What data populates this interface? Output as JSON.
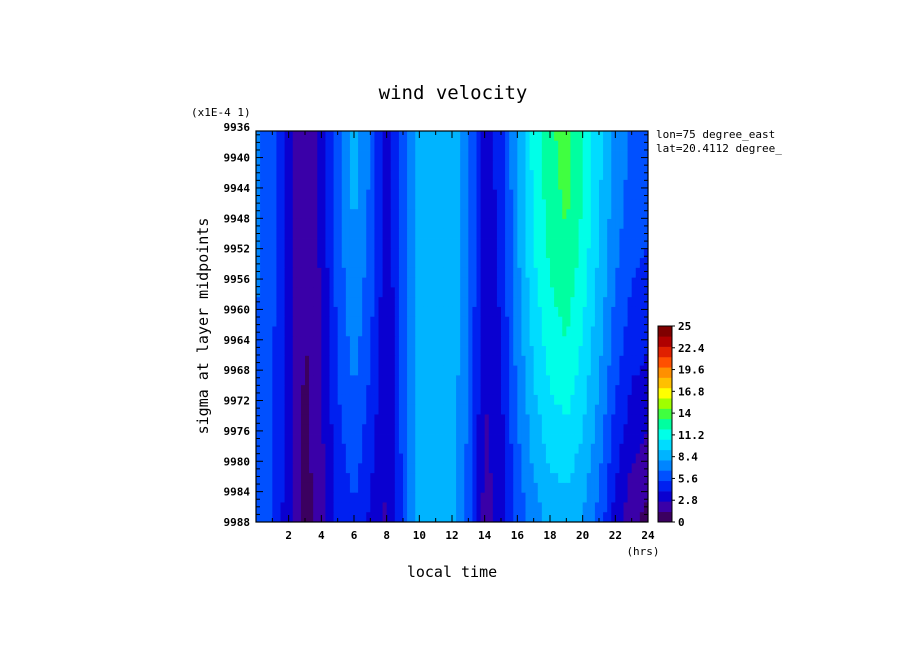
{
  "chart_data": {
    "type": "heatmap",
    "title": "wind velocity",
    "scale_note": "(x1E-4 1)",
    "xlabel": "local time",
    "xunit": "(hrs)",
    "ylabel": "sigma at layer midpoints",
    "annotations": [
      "lon=75 degree_east",
      "lat=20.4112 degree_"
    ],
    "xlim": [
      0,
      24
    ],
    "ylim": [
      9936.5,
      9988
    ],
    "x_ticks": [
      2,
      4,
      6,
      8,
      10,
      12,
      14,
      16,
      18,
      20,
      22,
      24
    ],
    "y_ticks": [
      9936,
      9940,
      9944,
      9948,
      9952,
      9956,
      9960,
      9964,
      9968,
      9972,
      9976,
      9980,
      9984,
      9988
    ],
    "colorbar": {
      "range": [
        0,
        25
      ],
      "tick_labels": [
        "0",
        "2.8",
        "5.6",
        "8.4",
        "11.2",
        "14",
        "16.8",
        "19.6",
        "22.4",
        "25"
      ],
      "colors": [
        "#3b0060",
        "#3a00a8",
        "#0a00d0",
        "#0020f0",
        "#0050ff",
        "#0085ff",
        "#00b4ff",
        "#00dcff",
        "#00ffe8",
        "#00ffa0",
        "#40ff40",
        "#a0ff00",
        "#ffff00",
        "#ffc000",
        "#ff9000",
        "#ff5000",
        "#e02000",
        "#b00000",
        "#800000"
      ]
    },
    "x": [
      0,
      1,
      2,
      3,
      4,
      5,
      6,
      7,
      8,
      9,
      10,
      11,
      12,
      13,
      14,
      15,
      16,
      17,
      18,
      19,
      20,
      21,
      22,
      23,
      24
    ],
    "values_top": [
      6.8,
      5.6,
      3.2,
      1.5,
      3.0,
      6.2,
      8.4,
      6.5,
      3.0,
      5.8,
      8.8,
      9.2,
      9.0,
      7.0,
      3.2,
      4.5,
      8.0,
      11.0,
      12.8,
      13.8,
      12.0,
      9.6,
      7.5,
      6.3,
      5.9
    ],
    "values_bottom": [
      6.5,
      5.5,
      3.0,
      0.6,
      2.0,
      4.2,
      5.0,
      3.6,
      2.4,
      5.6,
      8.6,
      8.7,
      8.4,
      6.0,
      2.0,
      3.0,
      5.6,
      7.2,
      8.3,
      8.5,
      7.8,
      6.1,
      3.3,
      1.6,
      0.9
    ]
  }
}
